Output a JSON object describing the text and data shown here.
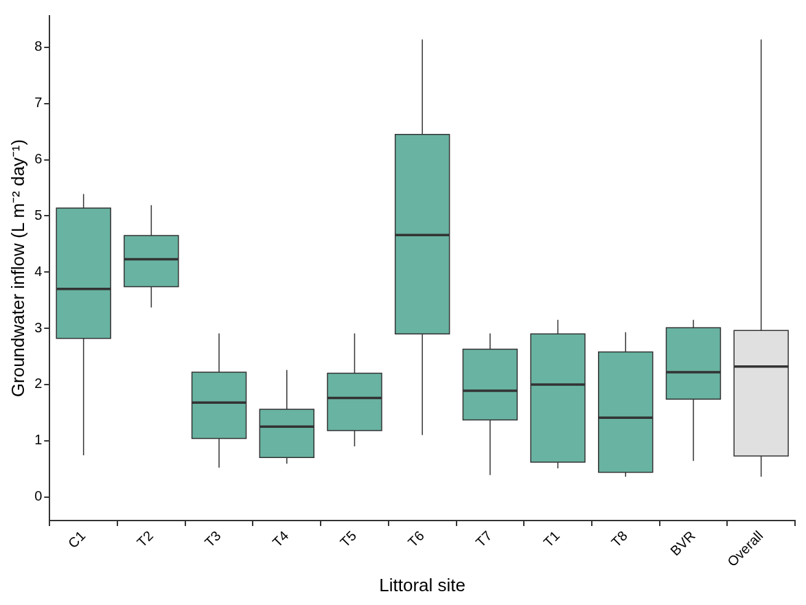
{
  "chart_data": {
    "type": "box",
    "xlabel": "Littoral site",
    "ylabel": "Groundwater inflow (L m⁻² day⁻¹)",
    "categories": [
      "C1",
      "T2",
      "T3",
      "T4",
      "T5",
      "T6",
      "T7",
      "T1",
      "T8",
      "BVR",
      "Overall"
    ],
    "colors": [
      "#69b3a2",
      "#69b3a2",
      "#69b3a2",
      "#69b3a2",
      "#69b3a2",
      "#69b3a2",
      "#69b3a2",
      "#69b3a2",
      "#69b3a2",
      "#69b3a2",
      "#e0e0e0"
    ],
    "boxes": [
      {
        "low": 0.74,
        "q1": 2.82,
        "median": 3.7,
        "q3": 5.14,
        "high": 5.39
      },
      {
        "low": 3.37,
        "q1": 3.74,
        "median": 4.23,
        "q3": 4.65,
        "high": 5.19
      },
      {
        "low": 0.52,
        "q1": 1.04,
        "median": 1.68,
        "q3": 2.22,
        "high": 2.91
      },
      {
        "low": 0.59,
        "q1": 0.7,
        "median": 1.25,
        "q3": 1.56,
        "high": 2.26
      },
      {
        "low": 0.9,
        "q1": 1.18,
        "median": 1.76,
        "q3": 2.2,
        "high": 2.91
      },
      {
        "low": 1.1,
        "q1": 2.9,
        "median": 4.66,
        "q3": 6.45,
        "high": 8.14
      },
      {
        "low": 0.39,
        "q1": 1.37,
        "median": 1.89,
        "q3": 2.63,
        "high": 2.91
      },
      {
        "low": 0.51,
        "q1": 0.62,
        "median": 2.0,
        "q3": 2.9,
        "high": 3.15
      },
      {
        "low": 0.36,
        "q1": 0.44,
        "median": 1.41,
        "q3": 2.58,
        "high": 2.93
      },
      {
        "low": 0.64,
        "q1": 1.74,
        "median": 2.22,
        "q3": 3.01,
        "high": 3.15
      },
      {
        "low": 0.36,
        "q1": 0.73,
        "median": 2.32,
        "q3": 2.96,
        "high": 8.14
      }
    ],
    "ylim": [
      -0.42,
      8.56
    ],
    "yticks": [
      0,
      1,
      2,
      3,
      4,
      5,
      6,
      7,
      8
    ]
  }
}
